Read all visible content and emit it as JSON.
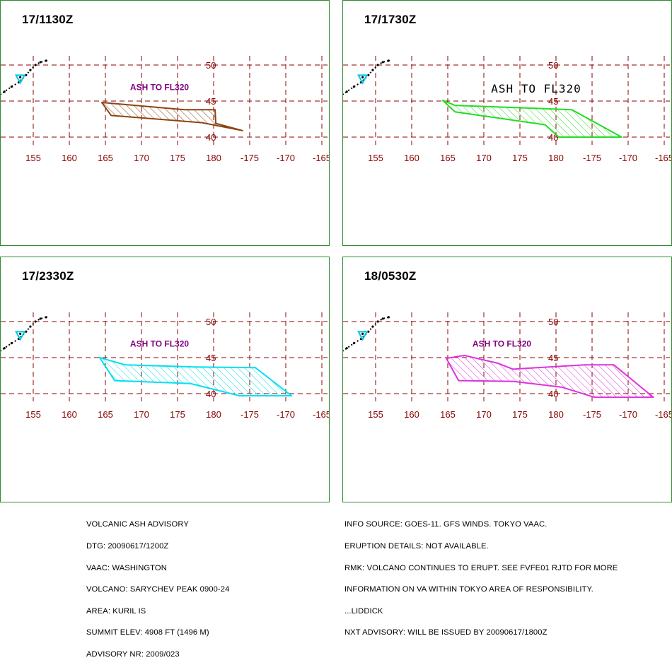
{
  "colors": {
    "grid": "#8b0000",
    "frame": "#2e8b2e",
    "label": "#800080",
    "volcano": "#00c8e0"
  },
  "map": {
    "lat_ticks": [
      50,
      45,
      40
    ],
    "lon_ticks": [
      155,
      160,
      165,
      170,
      175,
      180,
      -175,
      -170,
      -165
    ],
    "lon_labels": [
      "155",
      "160",
      "165",
      "170",
      "175",
      "180",
      "-175",
      "-170",
      "-165"
    ],
    "volcano": {
      "lon": 153.2,
      "lat": 48.1
    },
    "island_chain": [
      [
        150.0,
        45.6
      ],
      [
        151.0,
        46.3
      ],
      [
        152.0,
        47.0
      ],
      [
        153.0,
        47.6
      ],
      [
        154.0,
        48.6
      ],
      [
        154.6,
        49.3
      ],
      [
        155.3,
        50.0
      ],
      [
        156.0,
        50.4
      ],
      [
        156.8,
        50.6
      ]
    ]
  },
  "panels": [
    {
      "id": "p1",
      "time": "17/1130Z",
      "label": "ASH TO FL320",
      "label_font": "sans",
      "color": "#8b4513",
      "polygon": [
        [
          164.5,
          44.8
        ],
        [
          165.8,
          43.0
        ],
        [
          178.4,
          42.0
        ],
        [
          184.0,
          40.9
        ],
        [
          180.3,
          41.9
        ],
        [
          180.2,
          43.8
        ],
        [
          176.0,
          43.8
        ]
      ]
    },
    {
      "id": "p2",
      "time": "17/1730Z",
      "label": "ASH TO FL320",
      "label_font": "mono",
      "color": "#22dd22",
      "polygon": [
        [
          164.3,
          45.1
        ],
        [
          166.0,
          43.5
        ],
        [
          178.5,
          41.7
        ],
        [
          180.4,
          40.0
        ],
        [
          189.1,
          40.0
        ],
        [
          182.2,
          43.8
        ],
        [
          166.0,
          44.4
        ]
      ]
    },
    {
      "id": "p3",
      "time": "17/2330Z",
      "label": "ASH TO FL320",
      "label_font": "sans",
      "color": "#00e0f0",
      "polygon": [
        [
          164.2,
          45.0
        ],
        [
          166.3,
          41.8
        ],
        [
          176.8,
          41.4
        ],
        [
          183.6,
          39.7
        ],
        [
          190.8,
          39.7
        ],
        [
          185.8,
          43.6
        ],
        [
          177.3,
          43.7
        ],
        [
          167.7,
          44.0
        ]
      ]
    },
    {
      "id": "p4",
      "time": "18/0530Z",
      "label": "ASH TO FL320",
      "label_font": "sans",
      "color": "#dd33dd",
      "polygon": [
        [
          164.8,
          44.9
        ],
        [
          166.5,
          41.8
        ],
        [
          174.0,
          41.7
        ],
        [
          180.8,
          40.9
        ],
        [
          185.3,
          39.5
        ],
        [
          193.5,
          39.5
        ],
        [
          188.0,
          44.0
        ],
        [
          184.0,
          44.0
        ],
        [
          174.0,
          43.4
        ],
        [
          172.0,
          44.2
        ],
        [
          167.3,
          45.3
        ]
      ]
    }
  ],
  "advisory_left": [
    "VOLCANIC ASH ADVISORY",
    "DTG: 20090617/1200Z",
    "VAAC: WASHINGTON",
    "VOLCANO: SARYCHEV PEAK 0900-24",
    "AREA: KURIL IS",
    "SUMMIT ELEV: 4908 FT (1496 M)",
    "ADVISORY NR: 2009/023"
  ],
  "advisory_right": [
    "INFO SOURCE: GOES-11. GFS WINDS. TOKYO VAAC.",
    "ERUPTION DETAILS: NOT AVAILABLE.",
    "RMK: VOLCANO CONTINUES TO ERUPT. SEE FVFE01 RJTD FOR MORE",
    "INFORMATION ON VA WITHIN TOKYO AREA OF RESPONSIBILITY.",
    "...LIDDICK",
    "NXT ADVISORY: WILL BE ISSUED BY 20090617/1800Z"
  ]
}
